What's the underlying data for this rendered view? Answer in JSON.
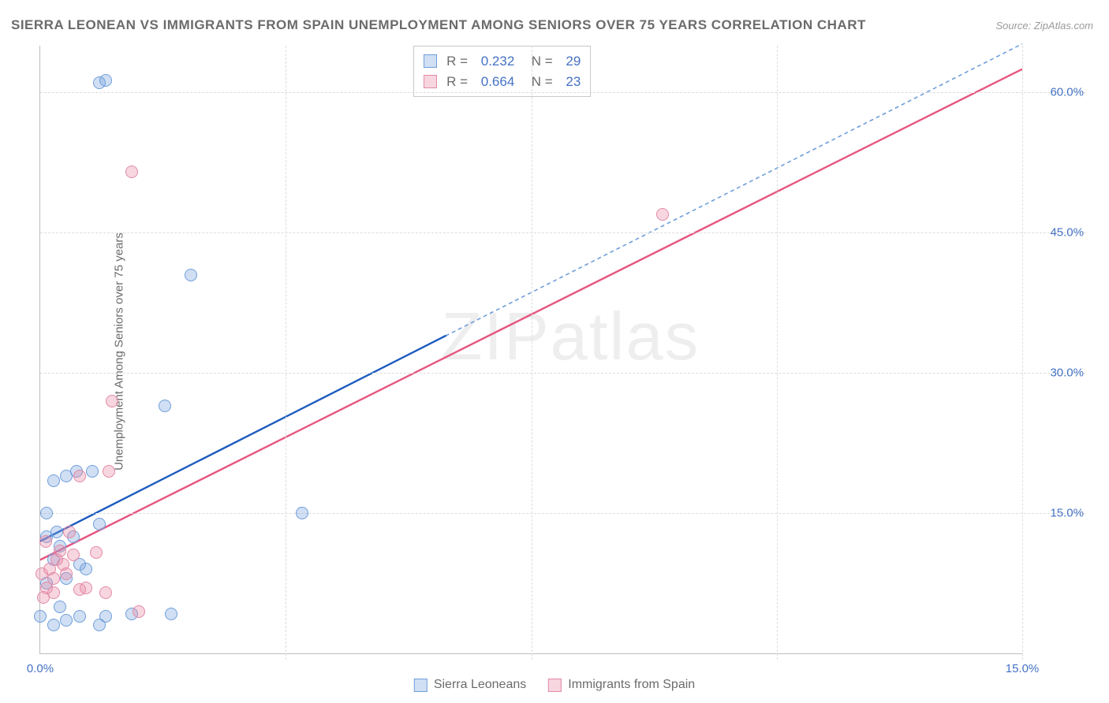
{
  "title": "SIERRA LEONEAN VS IMMIGRANTS FROM SPAIN UNEMPLOYMENT AMONG SENIORS OVER 75 YEARS CORRELATION CHART",
  "source": "Source: ZipAtlas.com",
  "watermark_parts": [
    "ZIP",
    "atlas"
  ],
  "chart": {
    "type": "scatter",
    "y_axis_label": "Unemployment Among Seniors over 75 years",
    "xlim": [
      0,
      15
    ],
    "ylim": [
      0,
      65
    ],
    "x_ticks": [
      {
        "value": 0.0,
        "label": "0.0%"
      },
      {
        "value": 15.0,
        "label": "15.0%"
      }
    ],
    "y_ticks": [
      {
        "value": 15.0,
        "label": "15.0%"
      },
      {
        "value": 30.0,
        "label": "30.0%"
      },
      {
        "value": 45.0,
        "label": "45.0%"
      },
      {
        "value": 60.0,
        "label": "60.0%"
      }
    ],
    "x_gridlines": [
      3.75,
      7.5,
      11.25,
      15.0
    ],
    "background_color": "#ffffff",
    "grid_color": "#dcdcdc",
    "axis_color": "#bdbdbd",
    "tick_label_color": "#4472c4",
    "title_color": "#6b6b6b",
    "point_radius": 8,
    "series": [
      {
        "name": "Sierra Leoneans",
        "fill": "rgba(121,163,220,0.35)",
        "stroke": "#6f9edb",
        "R": "0.232",
        "N": "29",
        "trend_color_solid": "#1d5bbf",
        "trend_color_dash": "#6f9edb",
        "trend": {
          "x1": 0,
          "y1": 12.0,
          "x2_solid": 6.2,
          "y2_solid": 34.0,
          "x2_dash": 15.0,
          "y2_dash": 65.2
        },
        "points": [
          [
            0.0,
            4.0
          ],
          [
            0.2,
            3.0
          ],
          [
            0.3,
            5.0
          ],
          [
            0.1,
            7.5
          ],
          [
            0.4,
            8.0
          ],
          [
            0.2,
            10.0
          ],
          [
            0.6,
            9.5
          ],
          [
            0.3,
            11.5
          ],
          [
            0.1,
            12.5
          ],
          [
            0.25,
            13.0
          ],
          [
            0.5,
            12.5
          ],
          [
            0.1,
            15.0
          ],
          [
            0.2,
            18.5
          ],
          [
            0.4,
            19.0
          ],
          [
            0.55,
            19.5
          ],
          [
            0.9,
            13.8
          ],
          [
            0.6,
            4.0
          ],
          [
            1.0,
            4.0
          ],
          [
            0.7,
            9.0
          ],
          [
            1.4,
            4.2
          ],
          [
            0.9,
            3.0
          ],
          [
            2.0,
            4.2
          ],
          [
            1.9,
            26.5
          ],
          [
            2.3,
            40.5
          ],
          [
            4.0,
            15.0
          ],
          [
            0.9,
            61.0
          ],
          [
            1.0,
            61.3
          ],
          [
            0.8,
            19.5
          ],
          [
            0.4,
            3.5
          ]
        ]
      },
      {
        "name": "Immigrants from Spain",
        "fill": "rgba(232,138,165,0.35)",
        "stroke": "#e38aa6",
        "R": "0.664",
        "N": "23",
        "trend_color_solid": "#e75480",
        "trend_color_dash": "#e38aa6",
        "trend": {
          "x1": 0,
          "y1": 10.0,
          "x2_solid": 15.0,
          "y2_solid": 62.5,
          "x2_dash": 15.0,
          "y2_dash": 62.5
        },
        "points": [
          [
            0.02,
            8.5
          ],
          [
            0.1,
            7.0
          ],
          [
            0.05,
            6.0
          ],
          [
            0.2,
            8.0
          ],
          [
            0.15,
            9.0
          ],
          [
            0.25,
            10.0
          ],
          [
            0.3,
            11.0
          ],
          [
            0.08,
            12.0
          ],
          [
            0.35,
            9.5
          ],
          [
            0.4,
            8.5
          ],
          [
            0.2,
            6.5
          ],
          [
            0.5,
            10.5
          ],
          [
            0.6,
            6.8
          ],
          [
            0.7,
            7.0
          ],
          [
            0.85,
            10.8
          ],
          [
            1.0,
            6.5
          ],
          [
            1.05,
            19.5
          ],
          [
            0.6,
            19.0
          ],
          [
            1.5,
            4.5
          ],
          [
            1.1,
            27.0
          ],
          [
            1.4,
            51.5
          ],
          [
            9.5,
            47.0
          ],
          [
            0.45,
            13.0
          ]
        ]
      }
    ]
  }
}
